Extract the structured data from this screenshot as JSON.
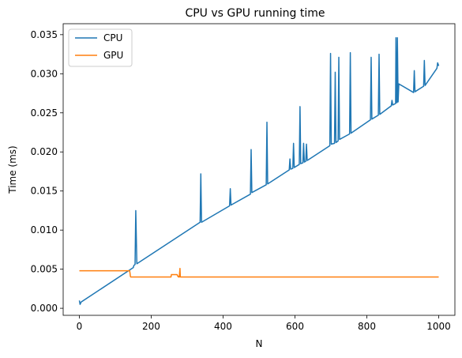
{
  "chart_data": {
    "type": "line",
    "title": "CPU vs GPU running time",
    "xlabel": "N",
    "ylabel": "Time (ms)",
    "xlim": [
      -45,
      1045
    ],
    "ylim": [
      -0.0009,
      0.0364
    ],
    "xticks": [
      0,
      200,
      400,
      600,
      800,
      1000
    ],
    "xtick_labels": [
      "0",
      "200",
      "400",
      "600",
      "800",
      "1000"
    ],
    "yticks": [
      0.0,
      0.005,
      0.01,
      0.015,
      0.02,
      0.025,
      0.03,
      0.035
    ],
    "ytick_labels": [
      "0.000",
      "0.005",
      "0.010",
      "0.015",
      "0.020",
      "0.025",
      "0.030",
      "0.035"
    ],
    "grid": false,
    "legend_position": "upper-left",
    "series": [
      {
        "name": "CPU",
        "color": "#1f77b4",
        "x": [
          0,
          2,
          5,
          150,
          152,
          155,
          157,
          160,
          336,
          338,
          340,
          418,
          420,
          422,
          476,
          478,
          480,
          520,
          522,
          524,
          584,
          586,
          588,
          594,
          596,
          598,
          612,
          614,
          616,
          622,
          624,
          626,
          630,
          632,
          634,
          697,
          699,
          701,
          710,
          712,
          714,
          720,
          722,
          724,
          752,
          754,
          756,
          810,
          812,
          814,
          832,
          834,
          836,
          868,
          870,
          872,
          880,
          881,
          883,
          884,
          885,
          887,
          889,
          930,
          932,
          934,
          958,
          960,
          962,
          995,
          997,
          1000
        ],
        "values": [
          0.001,
          0.0005,
          0.0008,
          0.0052,
          0.0055,
          0.0056,
          0.0125,
          0.0057,
          0.011,
          0.0172,
          0.011,
          0.0131,
          0.0153,
          0.0132,
          0.0146,
          0.0203,
          0.0148,
          0.0158,
          0.0238,
          0.0159,
          0.0177,
          0.0191,
          0.0178,
          0.0179,
          0.0211,
          0.018,
          0.0184,
          0.0258,
          0.0185,
          0.0186,
          0.0211,
          0.0187,
          0.0188,
          0.021,
          0.0189,
          0.0208,
          0.0326,
          0.021,
          0.0211,
          0.0302,
          0.0212,
          0.0214,
          0.0321,
          0.0216,
          0.0223,
          0.0327,
          0.0224,
          0.0241,
          0.0321,
          0.0242,
          0.0247,
          0.0325,
          0.0248,
          0.0259,
          0.0266,
          0.026,
          0.0262,
          0.0346,
          0.0263,
          0.0263,
          0.0346,
          0.0264,
          0.0287,
          0.0276,
          0.0304,
          0.0277,
          0.0284,
          0.0317,
          0.0285,
          0.0307,
          0.0314,
          0.031
        ]
      },
      {
        "name": "GPU",
        "color": "#ff7f0e",
        "x": [
          0,
          20,
          60,
          100,
          140,
          141,
          142,
          143,
          180,
          220,
          255,
          256,
          258,
          270,
          272,
          274,
          276,
          277,
          278,
          280,
          281,
          283,
          300,
          400,
          500,
          600,
          700,
          800,
          900,
          1000
        ],
        "values": [
          0.0048,
          0.0048,
          0.0048,
          0.0048,
          0.0048,
          0.0045,
          0.0041,
          0.004,
          0.004,
          0.004,
          0.004,
          0.0043,
          0.0043,
          0.0043,
          0.0043,
          0.0041,
          0.004,
          0.0041,
          0.004,
          0.0051,
          0.004,
          0.004,
          0.004,
          0.004,
          0.004,
          0.004,
          0.004,
          0.004,
          0.004,
          0.004
        ]
      }
    ]
  }
}
